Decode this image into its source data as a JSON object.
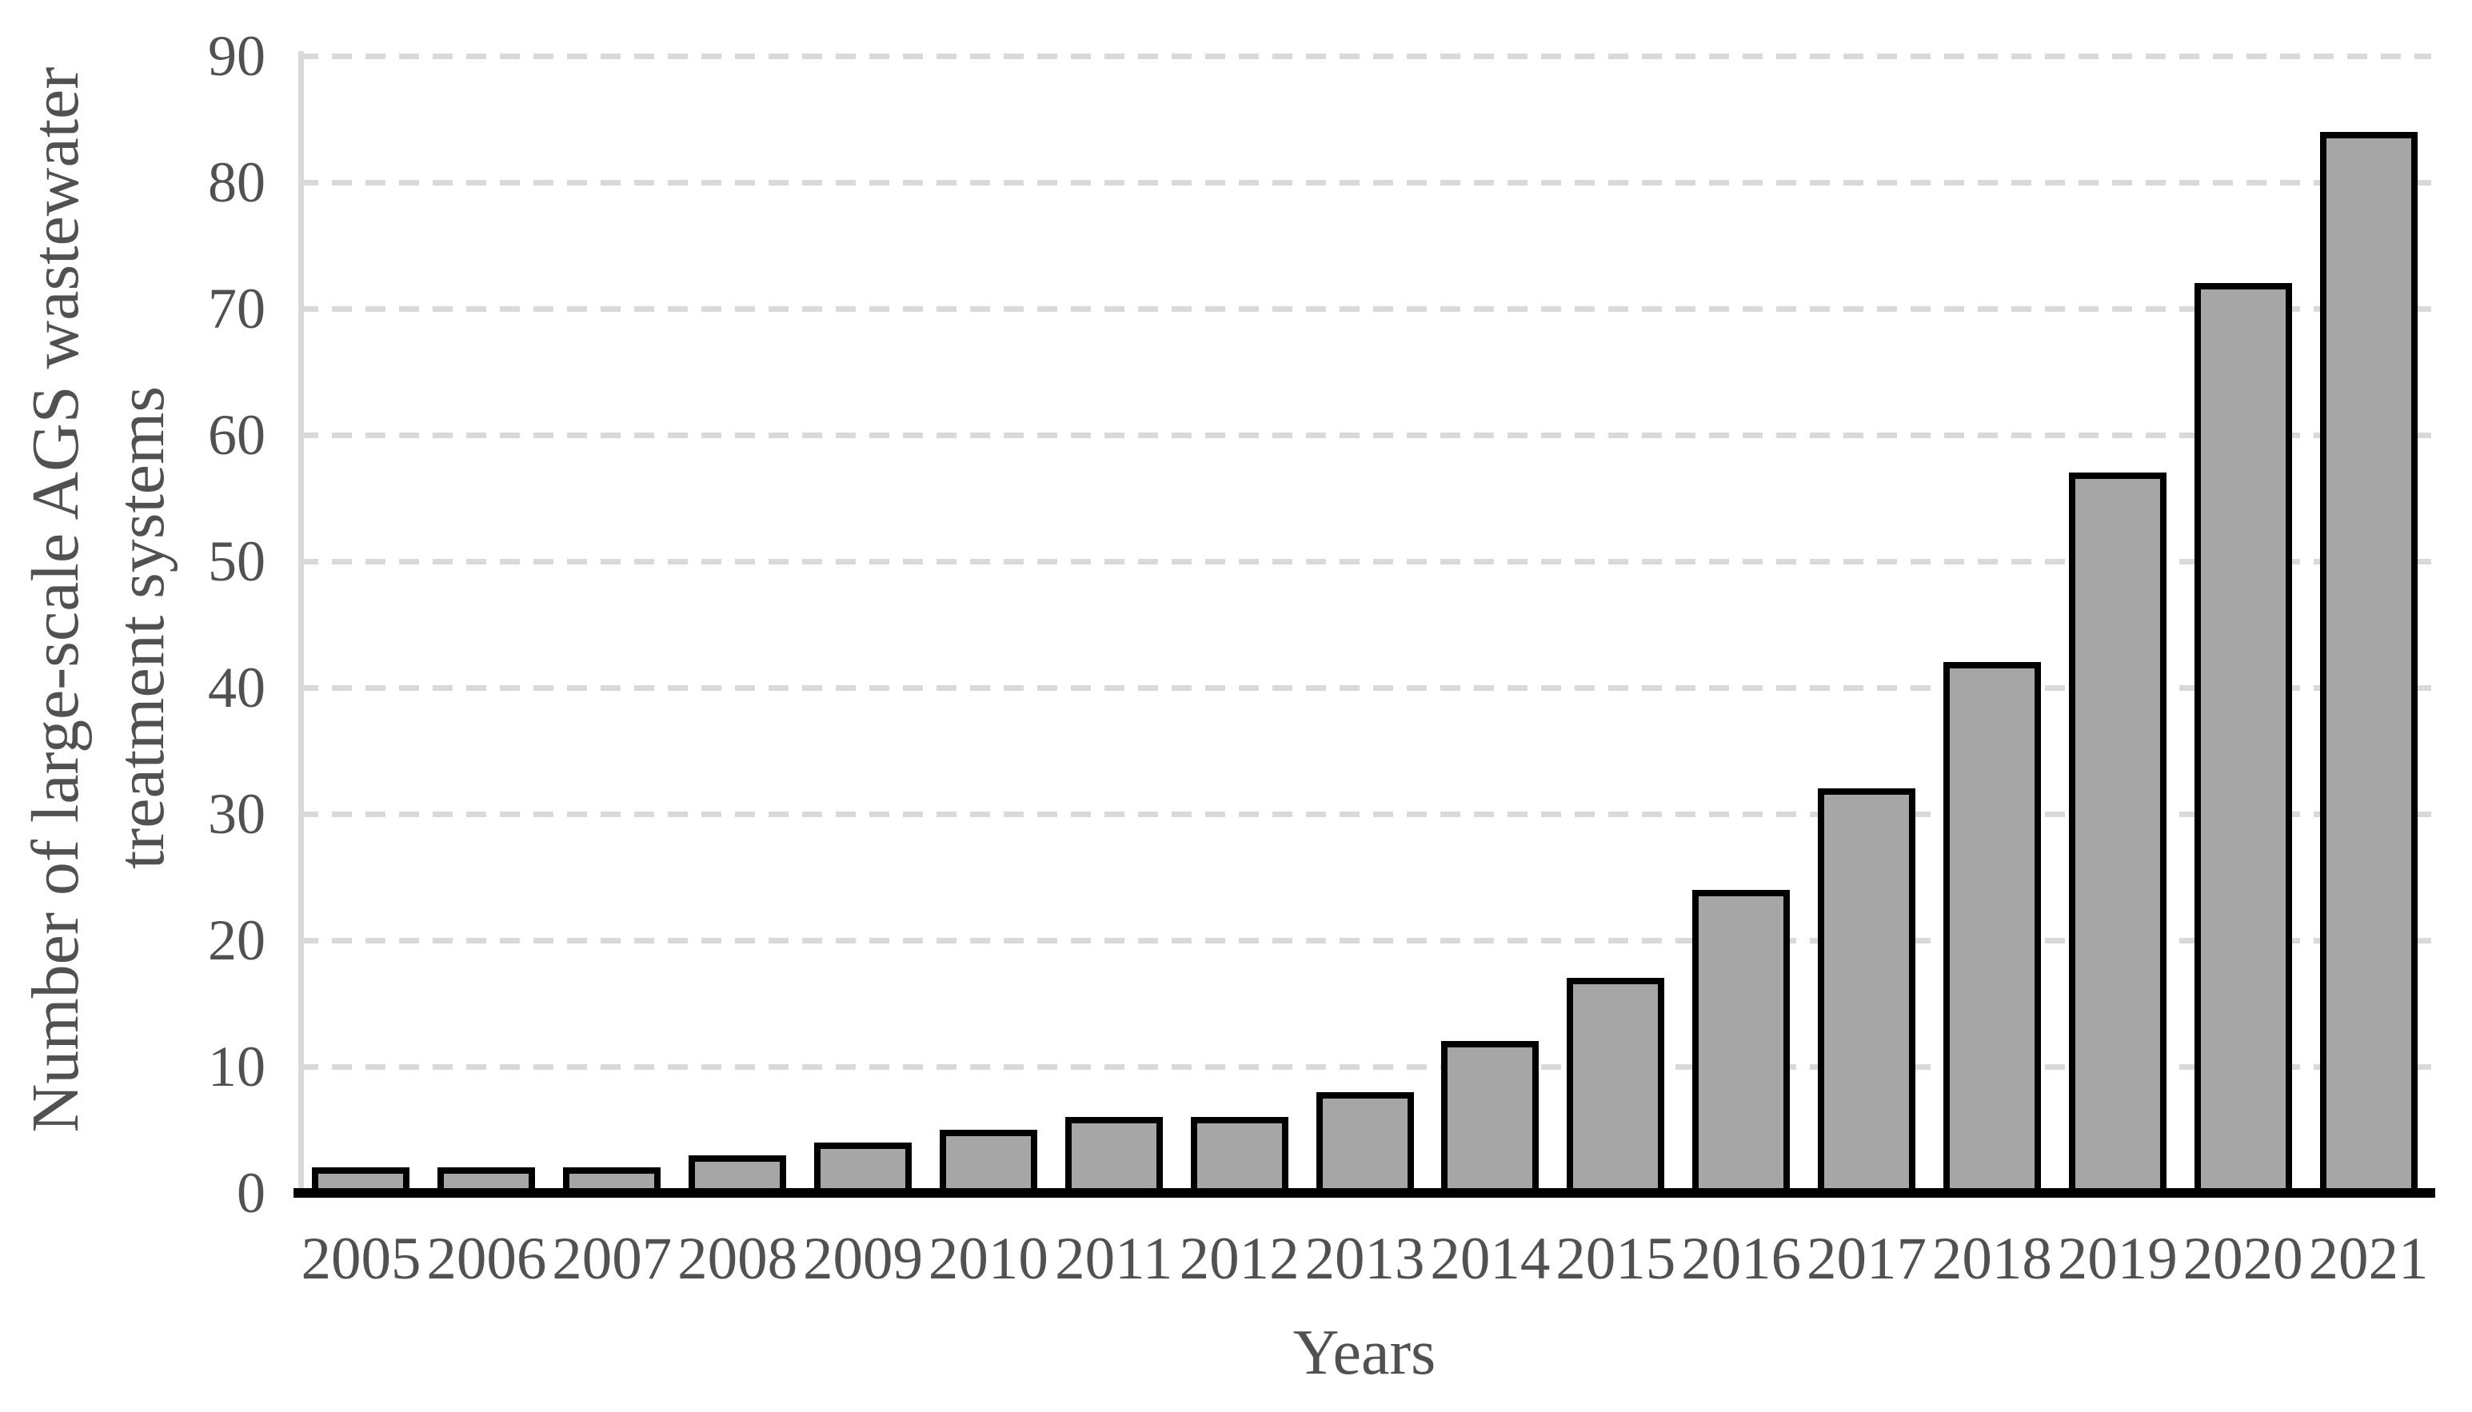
{
  "chart_data": {
    "type": "bar",
    "title": "",
    "xlabel": "Years",
    "ylabel": "Number of large-scale AGS wastewater treatment systems",
    "ylabel_lines": [
      "Number of large-scale AGS wastewater",
      "treatment systems"
    ],
    "categories": [
      "2005",
      "2006",
      "2007",
      "2008",
      "2009",
      "2010",
      "2011",
      "2012",
      "2013",
      "2014",
      "2015",
      "2016",
      "2017",
      "2018",
      "2019",
      "2020",
      "2021"
    ],
    "values": [
      2,
      2,
      2,
      3,
      4,
      5,
      6,
      6,
      8,
      12,
      17,
      24,
      32,
      42,
      57,
      72,
      84
    ],
    "ytick_labels": [
      "0",
      "10",
      "20",
      "30",
      "40",
      "50",
      "60",
      "70",
      "80",
      "90"
    ],
    "ylim": [
      0,
      90
    ],
    "ytick_step": 10,
    "grid": "horizontal-dashed",
    "legend_position": "none",
    "colors": {
      "bar_fill": "#a6a6a6",
      "bar_border": "#000000",
      "gridline": "#d9d9d9",
      "y_axis_line": "#d9d9d9",
      "baseline": "#000000",
      "text": "#515151",
      "background": "#ffffff"
    }
  }
}
